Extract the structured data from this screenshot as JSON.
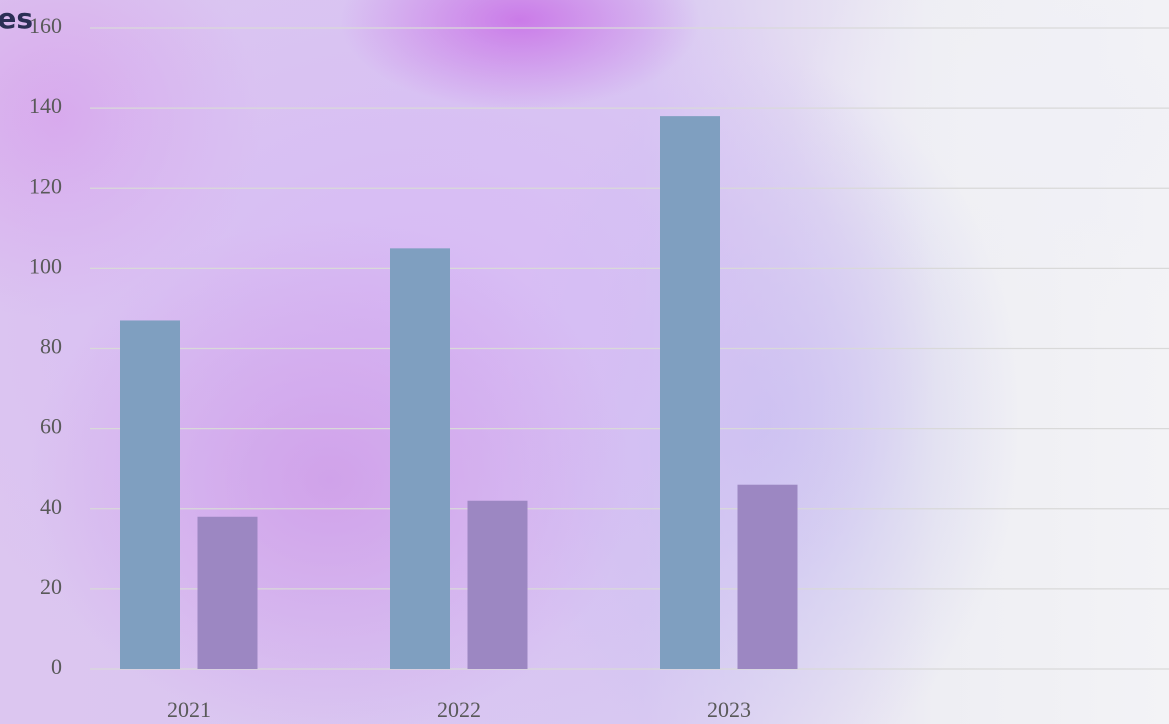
{
  "chart_data": {
    "type": "bar",
    "title": "es",
    "categories": [
      "2021",
      "2022",
      "2023",
      null
    ],
    "series": [
      {
        "color": "#7f9fc0",
        "values": [
          87,
          105,
          138,
          null
        ]
      },
      {
        "color": "#9c87c2",
        "values": [
          38,
          42,
          46,
          null
        ]
      }
    ],
    "ylim": [
      0,
      160
    ],
    "yticks": [
      0,
      20,
      40,
      60,
      80,
      100,
      120,
      140,
      160
    ],
    "grid": true
  }
}
